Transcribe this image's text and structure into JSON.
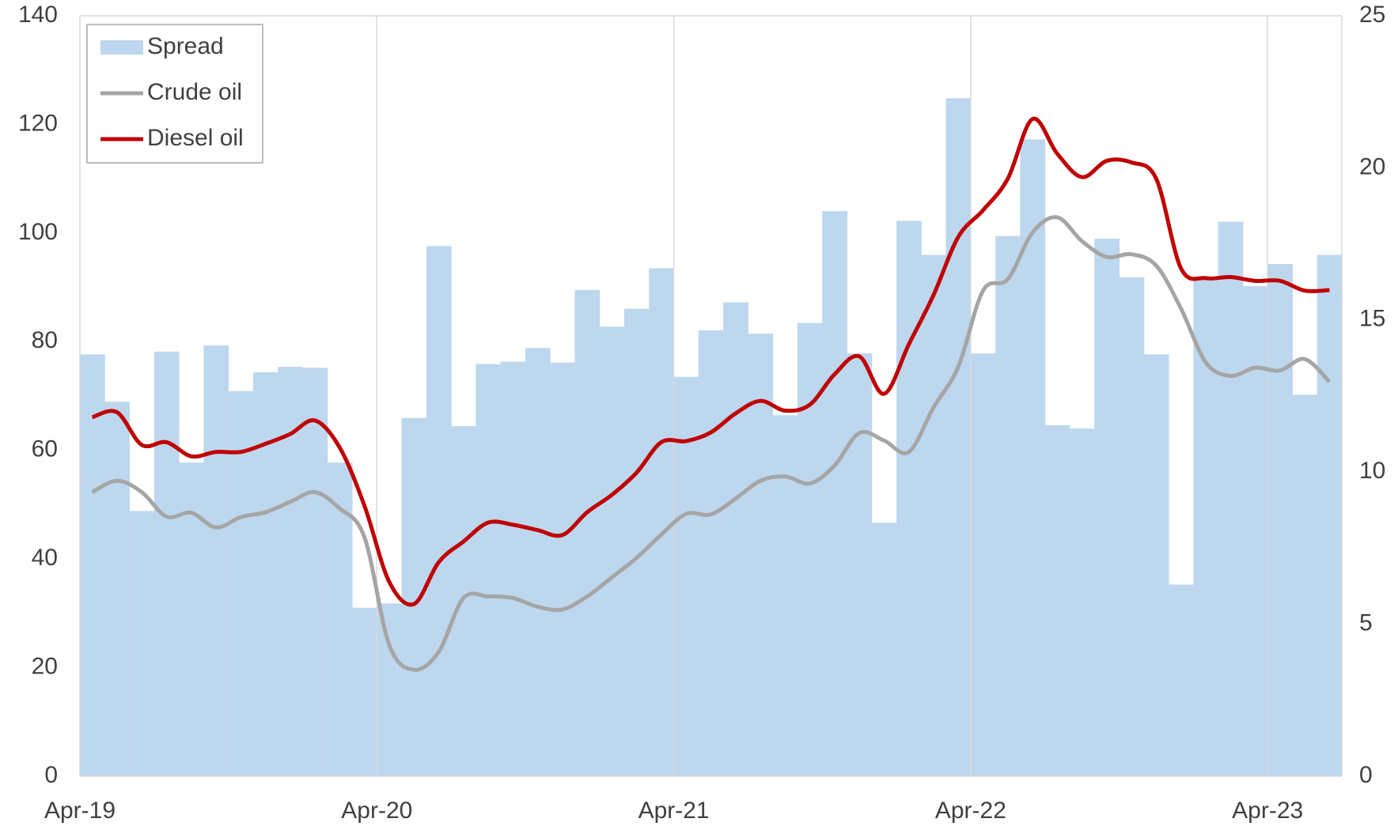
{
  "chart_data": {
    "type": "bar-line",
    "categories": [
      "Apr-19",
      null,
      null,
      null,
      null,
      null,
      null,
      null,
      null,
      null,
      null,
      null,
      "Apr-20",
      null,
      null,
      null,
      null,
      null,
      null,
      null,
      null,
      null,
      null,
      null,
      "Apr-21",
      null,
      null,
      null,
      null,
      null,
      null,
      null,
      null,
      null,
      null,
      null,
      "Apr-22",
      null,
      null,
      null,
      null,
      null,
      null,
      null,
      null,
      null,
      null,
      null,
      "Apr-23",
      null,
      null
    ],
    "series": [
      {
        "name": "Spread",
        "type": "bar",
        "axis": "y2",
        "color": "#bdd7ee",
        "values": [
          13.87,
          12.31,
          8.72,
          13.96,
          10.31,
          14.16,
          12.66,
          13.28,
          13.46,
          13.43,
          10.31,
          5.54,
          5.68,
          11.78,
          17.43,
          11.51,
          13.55,
          13.63,
          14.08,
          13.6,
          15.99,
          14.78,
          15.37,
          16.7,
          13.13,
          14.66,
          15.58,
          14.55,
          11.87,
          14.9,
          18.58,
          13.9,
          8.33,
          18.26,
          17.14,
          22.29,
          13.9,
          17.76,
          20.94,
          11.54,
          11.43,
          17.67,
          16.4,
          13.87,
          6.3,
          16.4,
          18.23,
          16.11,
          16.84,
          12.54,
          17.14
        ]
      },
      {
        "name": "Crude oil",
        "type": "line",
        "axis": "y",
        "color": "#a5a5a5",
        "values": [
          52.3,
          54.4,
          52.3,
          47.8,
          48.5,
          45.8,
          47.7,
          48.6,
          50.5,
          52.3,
          49.3,
          44.0,
          24.2,
          19.6,
          22.9,
          32.8,
          33.1,
          32.8,
          31.2,
          30.7,
          33.1,
          36.6,
          40.2,
          44.5,
          48.3,
          48.2,
          51.1,
          54.4,
          55.2,
          53.9,
          57.2,
          63.2,
          61.8,
          59.7,
          67.9,
          75.4,
          89.4,
          91.5,
          100.1,
          102.9,
          98.5,
          95.6,
          96.1,
          94.0,
          86.1,
          76.2,
          73.7,
          75.2,
          74.7,
          76.8,
          72.6
        ]
      },
      {
        "name": "Diesel oil",
        "type": "line",
        "axis": "y",
        "color": "#c00000",
        "values": [
          66.1,
          67.0,
          61.0,
          61.5,
          58.9,
          59.7,
          59.7,
          61.2,
          63.0,
          65.5,
          60.5,
          49.8,
          35.8,
          31.7,
          39.4,
          43.2,
          46.7,
          46.3,
          45.3,
          44.4,
          48.6,
          51.8,
          55.9,
          61.5,
          61.7,
          63.3,
          66.8,
          69.1,
          67.3,
          68.4,
          74.0,
          77.3,
          70.4,
          79.5,
          88.6,
          99.3,
          104.2,
          110.0,
          121.0,
          114.6,
          110.3,
          113.3,
          113.0,
          110.0,
          93.5,
          91.7,
          91.9,
          91.2,
          91.2,
          89.4,
          89.5
        ]
      }
    ],
    "ylim": [
      0,
      140
    ],
    "yticks": [
      0,
      20,
      40,
      60,
      80,
      100,
      120,
      140
    ],
    "y2lim": [
      0,
      25
    ],
    "y2ticks": [
      0,
      5,
      10,
      15,
      20,
      25
    ],
    "xgrid": true,
    "legend": "upper left"
  }
}
